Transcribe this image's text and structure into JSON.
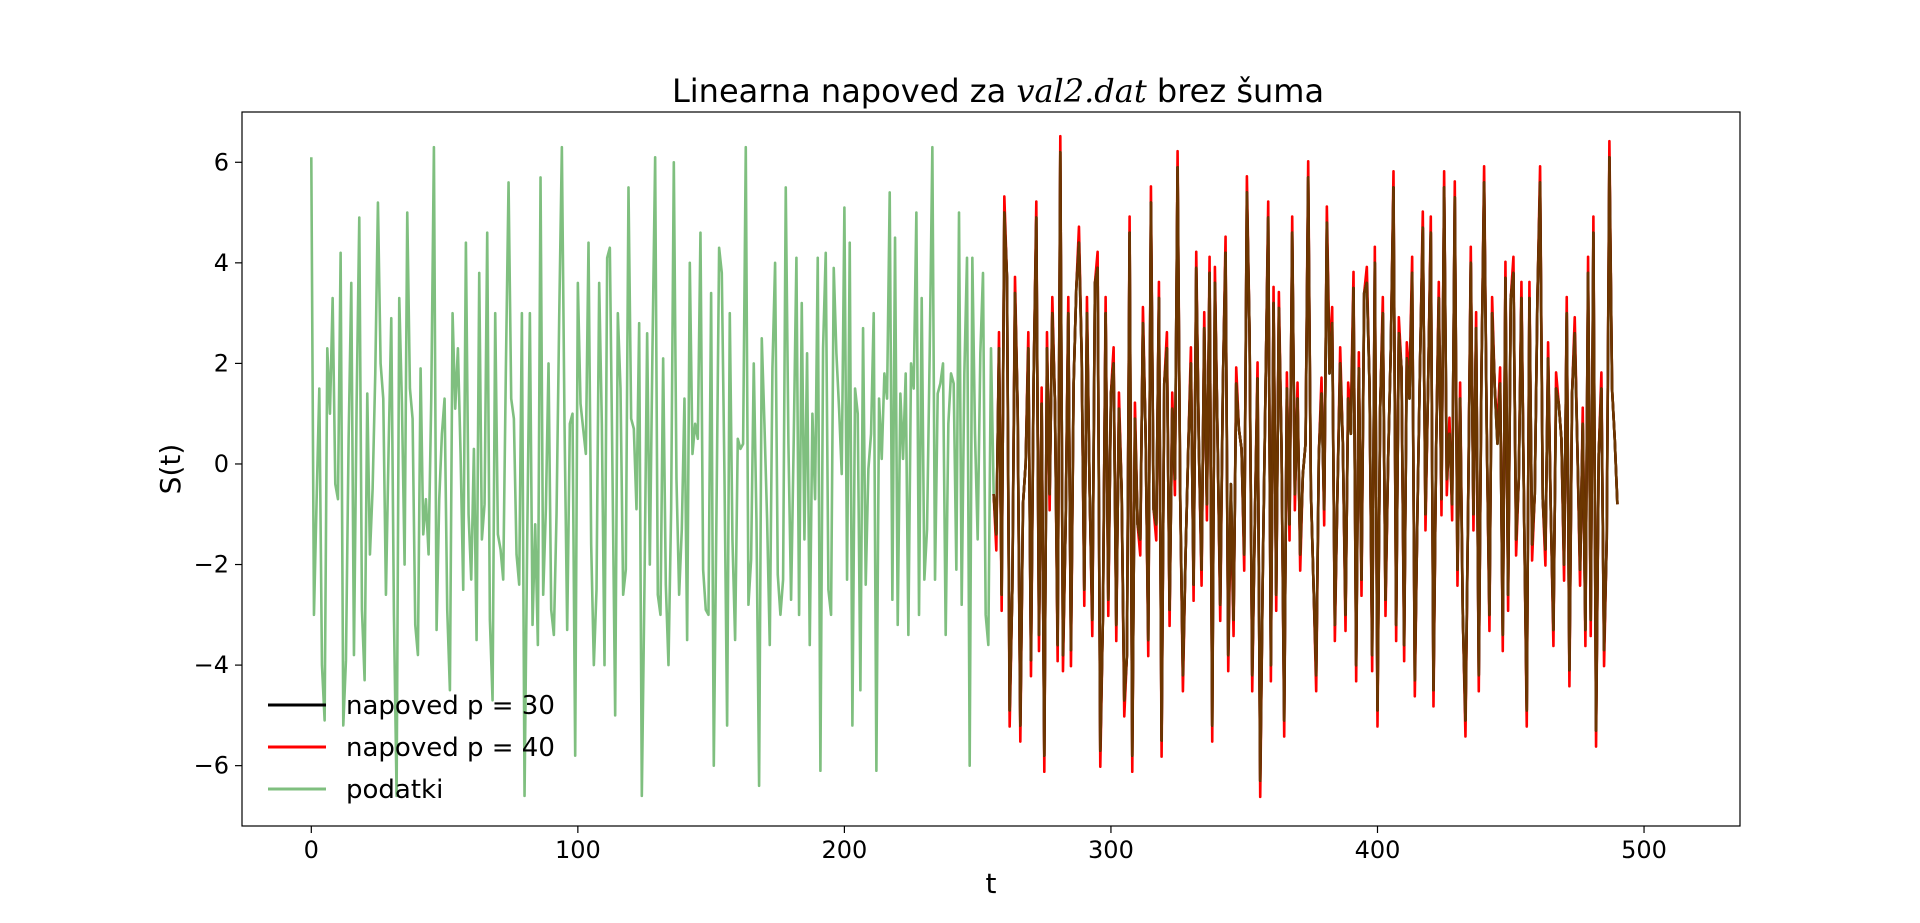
{
  "chart_data": {
    "type": "line",
    "title_prefix": "Linearna napoved za ",
    "title_math": "val2.dat",
    "title_suffix": " brez šuma",
    "xlabel": "t",
    "ylabel": "S(t)",
    "xlim": [
      -26,
      536
    ],
    "ylim": [
      -7.2,
      7.0
    ],
    "xticks": [
      0,
      100,
      200,
      300,
      400,
      500
    ],
    "xtick_labels": [
      "0",
      "100",
      "200",
      "300",
      "400",
      "500"
    ],
    "yticks": [
      6,
      4,
      2,
      0,
      -2,
      -4,
      -6
    ],
    "ytick_labels": [
      "6",
      "4",
      "2",
      "0",
      "−2",
      "−4",
      "−6"
    ],
    "grid": false,
    "legend_position": "lower-left",
    "data_x_start": 0,
    "prediction_x_start": 256,
    "series": [
      {
        "name": "podatki",
        "color": "#7fbf7f",
        "values": [
          6.1,
          -3.0,
          -0.7,
          1.5,
          -4.0,
          -5.1,
          2.3,
          1.0,
          3.3,
          -0.4,
          -0.7,
          4.2,
          -5.2,
          -3.9,
          0.5,
          3.6,
          -3.8,
          1.2,
          4.9,
          -2.9,
          -4.3,
          1.4,
          -1.8,
          -0.5,
          1.8,
          5.2,
          2.0,
          1.3,
          -2.6,
          0.3,
          2.9,
          -3.0,
          -6.6,
          3.3,
          1.2,
          -2.0,
          5.0,
          1.5,
          0.9,
          -3.2,
          -3.8,
          1.9,
          -1.4,
          -0.7,
          -1.8,
          1.3,
          6.3,
          -3.3,
          -0.7,
          0.6,
          1.3,
          -2.9,
          -4.5,
          3.0,
          1.1,
          2.3,
          0.2,
          -2.5,
          4.4,
          -1.0,
          -2.3,
          0.3,
          -3.5,
          3.8,
          -1.5,
          -0.8,
          4.6,
          -3.1,
          -4.7,
          3.0,
          -1.4,
          -1.7,
          -2.3,
          1.9,
          5.6,
          1.3,
          0.9,
          -1.8,
          -2.4,
          3.0,
          -6.6,
          -1.5,
          3.0,
          -3.2,
          -1.2,
          -3.6,
          5.7,
          -2.6,
          -0.9,
          2.0,
          -2.9,
          -3.4,
          -1.0,
          2.9,
          6.3,
          0.8,
          -3.3,
          0.8,
          1.0,
          -5.8,
          3.6,
          1.2,
          0.7,
          0.2,
          4.4,
          -1.6,
          -4.0,
          -2.5,
          3.6,
          0.8,
          -4.0,
          4.1,
          4.3,
          -0.2,
          -5.0,
          3.0,
          1.5,
          -2.6,
          -2.1,
          5.5,
          0.9,
          0.7,
          -0.9,
          2.8,
          -6.6,
          -2.4,
          2.6,
          -2.0,
          2.3,
          6.1,
          -2.6,
          -3.0,
          2.1,
          -2.4,
          -4.0,
          -0.9,
          6.0,
          -0.3,
          -2.6,
          -1.3,
          1.3,
          -3.5,
          4.0,
          0.2,
          0.8,
          0.5,
          4.6,
          -2.1,
          -2.9,
          -3.0,
          3.4,
          -6.0,
          -1.0,
          4.3,
          3.8,
          -0.2,
          -5.2,
          3.0,
          -1.5,
          -3.5,
          0.5,
          0.3,
          0.4,
          6.3,
          -2.8,
          -1.9,
          2.0,
          -1.1,
          -6.4,
          2.5,
          0.8,
          -1.1,
          -3.6,
          1.9,
          4.0,
          -2.2,
          -3.0,
          -2.3,
          5.5,
          0.4,
          -2.7,
          0.5,
          4.1,
          -3.0,
          3.2,
          -1.5,
          2.2,
          -3.6,
          1.0,
          -0.7,
          4.1,
          -6.1,
          2.3,
          4.2,
          -2.5,
          -3.0,
          3.9,
          2.2,
          1.1,
          -0.2,
          5.1,
          -2.3,
          4.4,
          -5.2,
          1.5,
          1.0,
          -4.5,
          2.7,
          -2.4,
          -0.1,
          0.6,
          3.0,
          -6.1,
          1.3,
          0.1,
          1.8,
          1.3,
          5.4,
          -2.7,
          4.5,
          -3.2,
          1.4,
          0.1,
          1.8,
          -3.4,
          2.0,
          1.5,
          5.0,
          -3.0,
          3.3,
          -2.3,
          -1.3,
          2.2,
          6.3,
          -2.3,
          1.4,
          1.6,
          2.0,
          -3.4,
          0.8,
          1.8,
          1.6,
          -2.1,
          5.0,
          -2.8,
          1.8,
          4.1,
          -6.0,
          4.1,
          0.6,
          -1.5,
          2.2,
          3.8,
          -3.0,
          -3.6,
          2.3,
          -0.6,
          -1.4,
          2.3,
          -2.6,
          5.0,
          3.7,
          -4.9,
          -2.5,
          3.4,
          1.1,
          -5.2,
          -0.8,
          0.0,
          2.3,
          -3.9,
          1.7,
          4.9,
          -3.4,
          1.2,
          -5.8,
          2.3,
          -0.6,
          3.0,
          1.2,
          -3.6,
          6.2,
          -3.8,
          -1.2,
          3.0,
          -3.7,
          1.6,
          3.5,
          4.4,
          2.2,
          -2.5,
          3.0,
          -0.5,
          -3.1,
          3.6,
          3.9,
          -5.7,
          -3.0,
          3.0,
          -2.7,
          1.4,
          2.0,
          -3.2,
          1.1,
          -0.5,
          -4.7,
          -3.8,
          4.6,
          -5.8,
          0.9,
          -1.2,
          -1.5,
          2.8,
          0.6,
          -3.5,
          5.2,
          -0.9,
          -1.2,
          3.3,
          -5.5,
          1.6,
          2.3,
          -2.9,
          1.1,
          -0.3,
          5.9,
          -0.7,
          -4.2,
          -1.8,
          0.3,
          2.0,
          -2.4,
          3.9,
          0.3,
          -2.1,
          2.7,
          -0.8,
          3.8,
          -5.2,
          3.6,
          0.5,
          -2.8,
          1.6,
          4.2,
          -3.8,
          -0.4,
          -3.1,
          1.6,
          0.7,
          0.3,
          -1.8,
          5.4,
          2.6,
          -4.2,
          -1.1,
          1.7,
          -6.3,
          -2.0,
          1.5,
          4.9,
          -4.0,
          3.2,
          -2.6,
          3.1,
          0.3,
          -5.1,
          1.5,
          -1.2,
          4.6,
          -0.6,
          1.3,
          -1.8,
          -0.2,
          0.4,
          5.7,
          -0.5,
          -2.4,
          -4.2,
          0.2,
          1.4,
          -0.9,
          4.8,
          1.8,
          2.8,
          -3.2,
          -0.5,
          2.0,
          0.4,
          -3.0,
          1.3,
          0.6,
          3.5,
          -4.0,
          1.9,
          -2.3,
          3.4,
          3.6,
          1.6,
          -3.8,
          4.0,
          -4.9,
          1.1,
          3.0,
          -2.7,
          0.1,
          2.3,
          5.5,
          -3.2,
          2.6,
          1.9,
          -3.6,
          2.1,
          1.3,
          3.8,
          -4.3,
          -0.9,
          2.1,
          4.7,
          -1.0,
          1.6,
          4.6,
          -4.5,
          0.3,
          3.3,
          -0.7,
          5.5,
          -0.3,
          0.6,
          -0.8,
          5.3,
          -2.1,
          1.3,
          -3.0,
          -5.1,
          -0.9,
          4.0,
          -1.0,
          2.7,
          -4.2,
          1.8,
          5.6,
          0.6,
          -3.0,
          3.0,
          1.5,
          0.4,
          1.6,
          -3.4,
          3.7,
          -2.6,
          3.3,
          3.8,
          -1.5,
          -0.3,
          3.3,
          -1.0,
          -4.9,
          3.3,
          -1.6,
          -0.6,
          3.3,
          5.6,
          -0.7,
          -1.7,
          2.1,
          -0.9,
          -3.3,
          1.5,
          1.2,
          0.5,
          -2.0,
          3.0,
          -4.1,
          1.4,
          2.6,
          0.3,
          -2.1,
          0.8,
          -3.3,
          3.8,
          -3.1,
          4.6,
          -5.3,
          0.2,
          1.5,
          -3.7,
          -1.5,
          6.1,
          1.5,
          0.5,
          -0.8
        ]
      },
      {
        "name": "napoved p = 40",
        "color": "#ff0000",
        "start_index": 256,
        "from_data": true,
        "peak_boost": 0.32
      },
      {
        "name": "napoved p = 30",
        "color": "#000000",
        "start_index": 256,
        "from_data": true,
        "peak_boost": 0.0
      }
    ]
  }
}
